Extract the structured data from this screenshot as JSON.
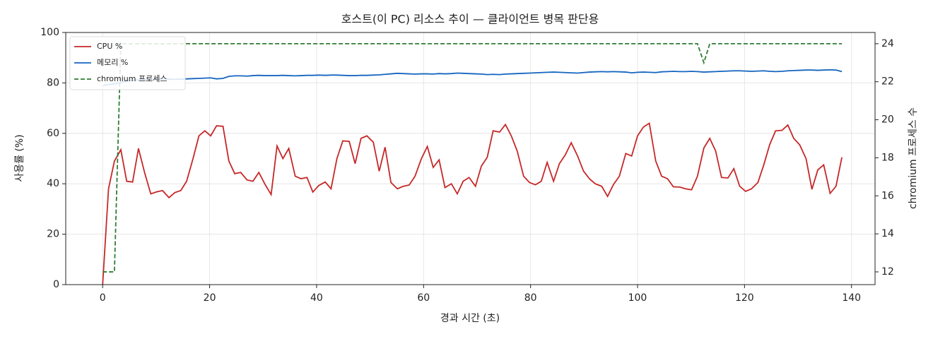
{
  "chart_data": {
    "type": "line",
    "title": "호스트(이 PC) 리소스 추이 — 클라이언트 병목 판단용",
    "xlabel": "경과 시간 (초)",
    "ylabel": "사용률 (%)",
    "y2label": "chromium 프로세스 수",
    "x": [
      0,
      1.1,
      2.2,
      3.4,
      4.5,
      5.6,
      6.7,
      7.9,
      9.0,
      10.1,
      11.2,
      12.4,
      13.5,
      14.6,
      15.7,
      16.9,
      18.0,
      19.1,
      20.2,
      21.3,
      22.5,
      23.6,
      24.7,
      25.8,
      27.0,
      28.1,
      29.2,
      30.3,
      31.5,
      32.6,
      33.7,
      34.8,
      36.0,
      37.1,
      38.2,
      39.3,
      40.4,
      41.6,
      42.7,
      43.8,
      44.9,
      46.1,
      47.2,
      48.3,
      49.4,
      50.6,
      51.7,
      52.8,
      53.9,
      55.1,
      56.2,
      57.3,
      58.4,
      59.6,
      60.7,
      61.8,
      62.9,
      64.0,
      65.2,
      66.3,
      67.4,
      68.5,
      69.7,
      70.8,
      71.9,
      73.0,
      74.2,
      75.3,
      76.4,
      77.5,
      78.7,
      79.8,
      80.9,
      82.0,
      83.1,
      84.3,
      85.4,
      86.5,
      87.6,
      88.8,
      89.9,
      91.0,
      92.1,
      93.3,
      94.4,
      95.5,
      96.6,
      97.8,
      98.9,
      100.0,
      101.1,
      102.2,
      103.4,
      104.5,
      105.6,
      106.7,
      107.9,
      109.0,
      110.1,
      111.2,
      112.4,
      113.5,
      114.6,
      115.7,
      116.9,
      118.0,
      119.1,
      120.2,
      121.3,
      122.5,
      123.6,
      124.7,
      125.8,
      127.0,
      128.1,
      129.2,
      130.3,
      131.5,
      132.6,
      133.7,
      134.8,
      136.0,
      137.1,
      138.2
    ],
    "series": [
      {
        "name": "CPU %",
        "color": "#c62828",
        "axis": "y",
        "linestyle": "solid",
        "values": [
          0,
          38,
          49,
          53.5,
          41,
          40.7,
          54,
          44,
          36,
          36.8,
          37.3,
          34.5,
          36.5,
          37.3,
          41,
          50,
          59,
          61,
          59,
          63,
          62.8,
          49,
          44,
          44.5,
          41.5,
          41,
          44.5,
          40,
          35.7,
          55,
          50,
          54,
          43,
          42,
          42.5,
          36.7,
          39.3,
          40.7,
          38,
          50,
          57,
          56.8,
          48,
          58,
          59,
          56.5,
          45,
          54.5,
          40.5,
          38,
          39,
          39.5,
          43,
          50,
          54.8,
          46.5,
          49.5,
          38.5,
          40,
          36,
          41,
          42.5,
          39,
          47,
          50.5,
          61,
          60.5,
          63.5,
          59,
          53,
          43,
          40.5,
          39.6,
          41,
          48.5,
          41,
          48,
          51.5,
          56.3,
          51,
          45,
          42,
          40,
          39,
          35,
          39.7,
          43,
          52,
          51,
          59,
          62.5,
          64,
          49,
          43,
          42,
          38.8,
          38.7,
          38,
          37.6,
          43,
          54.2,
          58,
          53,
          42.5,
          42.3,
          46,
          39,
          37,
          38,
          40.5,
          47.5,
          55.5,
          61,
          61.2,
          63.3,
          58,
          55.5,
          50,
          37.8,
          45.5,
          47.5,
          36.2,
          39,
          50.5
        ]
      },
      {
        "name": "메모리 %",
        "color": "#1565c0",
        "axis": "y",
        "linestyle": "solid",
        "values": [
          79.0,
          79.3,
          79.6,
          80.2,
          80.8,
          81.0,
          81.2,
          81.3,
          81.4,
          81.5,
          81.6,
          81.5,
          81.4,
          81.5,
          81.6,
          81.7,
          81.8,
          81.9,
          82.0,
          81.6,
          81.8,
          82.6,
          82.8,
          82.8,
          82.7,
          82.9,
          83.0,
          82.9,
          82.9,
          82.9,
          83.0,
          82.9,
          82.8,
          82.9,
          83.0,
          83.0,
          83.1,
          83.0,
          83.1,
          83.1,
          83.0,
          82.9,
          82.9,
          83.0,
          83.0,
          83.1,
          83.2,
          83.4,
          83.6,
          83.8,
          83.7,
          83.6,
          83.5,
          83.6,
          83.6,
          83.5,
          83.7,
          83.6,
          83.7,
          83.9,
          83.8,
          83.7,
          83.6,
          83.5,
          83.3,
          83.4,
          83.3,
          83.5,
          83.6,
          83.7,
          83.8,
          83.9,
          84.0,
          84.1,
          84.2,
          84.3,
          84.2,
          84.1,
          84.0,
          83.9,
          84.1,
          84.3,
          84.4,
          84.5,
          84.4,
          84.5,
          84.4,
          84.3,
          84.0,
          84.2,
          84.3,
          84.2,
          84.1,
          84.4,
          84.5,
          84.6,
          84.5,
          84.5,
          84.6,
          84.5,
          84.3,
          84.4,
          84.5,
          84.6,
          84.7,
          84.8,
          84.8,
          84.7,
          84.6,
          84.7,
          84.8,
          84.6,
          84.5,
          84.6,
          84.8,
          84.9,
          85.0,
          85.1,
          85.1,
          85.0,
          85.1,
          85.2,
          85.1,
          84.5
        ]
      },
      {
        "name": "chromium 프로세스",
        "color": "#2e7d32",
        "axis": "y2",
        "linestyle": "dashed",
        "values": [
          12,
          12,
          12,
          24,
          24,
          24,
          24,
          24,
          24,
          24,
          24,
          24,
          24,
          24,
          24,
          24,
          24,
          24,
          24,
          24,
          24,
          24,
          24,
          24,
          24,
          24,
          24,
          24,
          24,
          24,
          24,
          24,
          24,
          24,
          24,
          24,
          24,
          24,
          24,
          24,
          24,
          24,
          24,
          24,
          24,
          24,
          24,
          24,
          24,
          24,
          24,
          24,
          24,
          24,
          24,
          24,
          24,
          24,
          24,
          24,
          24,
          24,
          24,
          24,
          24,
          24,
          24,
          24,
          24,
          24,
          24,
          24,
          24,
          24,
          24,
          24,
          24,
          24,
          24,
          24,
          24,
          24,
          24,
          24,
          24,
          24,
          24,
          24,
          24,
          24,
          24,
          24,
          24,
          24,
          24,
          24,
          24,
          24,
          24,
          24,
          23,
          24,
          24,
          24,
          24,
          24,
          24,
          24,
          24,
          24,
          24,
          24,
          24,
          24,
          24,
          24,
          24,
          24,
          24,
          24,
          24,
          24,
          24,
          24
        ]
      }
    ],
    "xlim": [
      -6.9,
      144.4
    ],
    "xticks": [
      0,
      20,
      40,
      60,
      80,
      100,
      120,
      140
    ],
    "ylim": [
      0,
      100
    ],
    "yticks": [
      0,
      20,
      40,
      60,
      80,
      100
    ],
    "y2lim": [
      11.33,
      24.59
    ],
    "y2ticks": [
      12,
      14,
      16,
      18,
      20,
      22,
      24
    ],
    "grid": true,
    "legend": "upper left"
  }
}
